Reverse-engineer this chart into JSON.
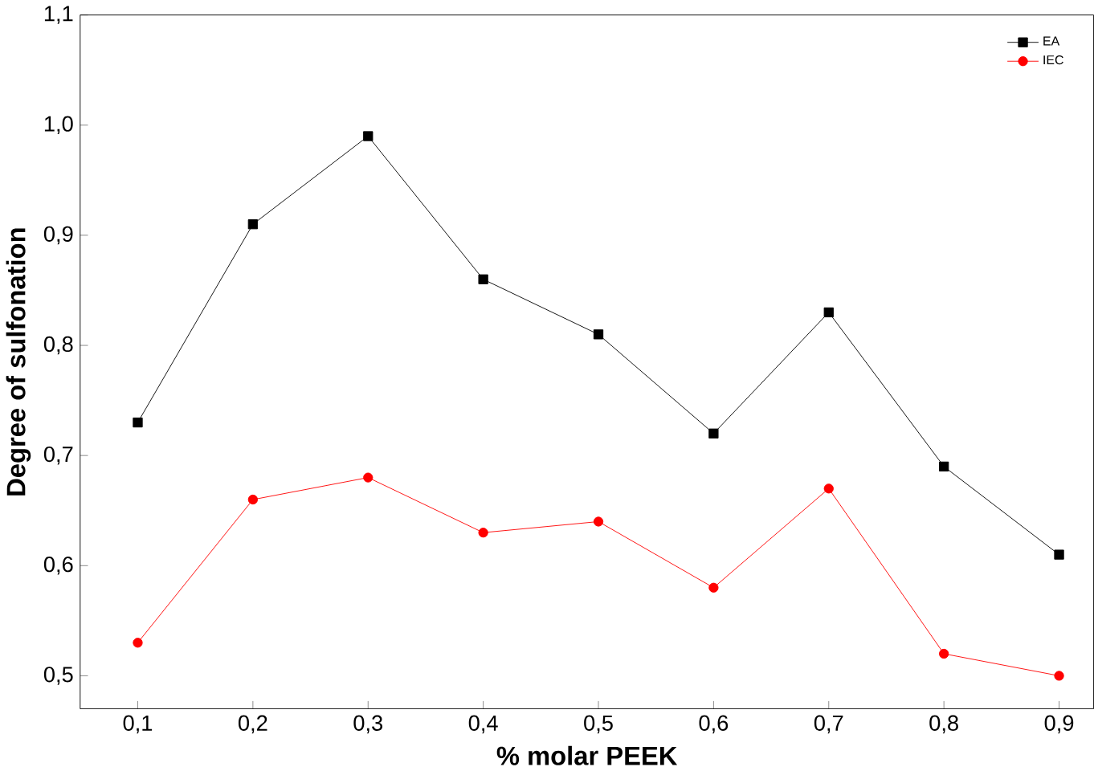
{
  "chart_data": {
    "type": "line",
    "xlabel": "% molar PEEK",
    "ylabel": "Degree of sulfonation",
    "x": [
      0.1,
      0.2,
      0.3,
      0.4,
      0.5,
      0.6,
      0.7,
      0.8,
      0.9
    ],
    "series": [
      {
        "name": "EA",
        "color": "#000000",
        "marker": "square",
        "values": [
          0.73,
          0.91,
          0.99,
          0.86,
          0.81,
          0.72,
          0.83,
          0.69,
          0.61
        ]
      },
      {
        "name": "IEC",
        "color": "#ff0000",
        "marker": "circle",
        "values": [
          0.53,
          0.66,
          0.68,
          0.63,
          0.64,
          0.58,
          0.67,
          0.52,
          0.5
        ]
      }
    ],
    "xlim": [
      0.05,
      0.93
    ],
    "ylim": [
      0.47,
      1.1
    ],
    "xticks": [
      {
        "value": 0.1,
        "label": "0,1"
      },
      {
        "value": 0.2,
        "label": "0,2"
      },
      {
        "value": 0.3,
        "label": "0,3"
      },
      {
        "value": 0.4,
        "label": "0,4"
      },
      {
        "value": 0.5,
        "label": "0,5"
      },
      {
        "value": 0.6,
        "label": "0,6"
      },
      {
        "value": 0.7,
        "label": "0,7"
      },
      {
        "value": 0.8,
        "label": "0,8"
      },
      {
        "value": 0.9,
        "label": "0,9"
      }
    ],
    "yticks": [
      {
        "value": 0.5,
        "label": "0,5"
      },
      {
        "value": 0.6,
        "label": "0,6"
      },
      {
        "value": 0.7,
        "label": "0,7"
      },
      {
        "value": 0.8,
        "label": "0,8"
      },
      {
        "value": 0.9,
        "label": "0,9"
      },
      {
        "value": 1.0,
        "label": "1,0"
      },
      {
        "value": 1.1,
        "label": "1,1"
      }
    ],
    "legend": "top right",
    "grid": false,
    "line_style": "solid"
  }
}
